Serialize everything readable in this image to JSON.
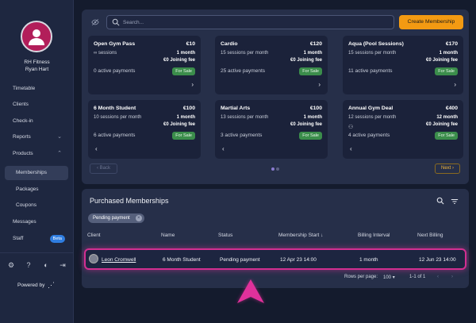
{
  "sidebar": {
    "org_name": "RH Fitness",
    "user_name": "Ryan Hart",
    "items": [
      {
        "label": "Timetable"
      },
      {
        "label": "Clients"
      },
      {
        "label": "Check-in"
      },
      {
        "label": "Reports"
      },
      {
        "label": "Products"
      },
      {
        "label": "Memberships"
      },
      {
        "label": "Packages"
      },
      {
        "label": "Coupons"
      },
      {
        "label": "Messages"
      },
      {
        "label": "Staff"
      }
    ],
    "staff_badge": "Beta",
    "powered_by": "Powered by"
  },
  "toolbar": {
    "search_placeholder": "Search...",
    "create_label": "Create Membership"
  },
  "memberships": [
    {
      "name": "Open Gym Pass",
      "price": "€10",
      "sessions": "∞ sessions",
      "duration": "1 month",
      "fee": "€0 Joining fee",
      "payments": "0 active payments",
      "status": "For Sale"
    },
    {
      "name": "Cardio",
      "price": "€120",
      "sessions": "15 sessions per month",
      "duration": "1 month",
      "fee": "€0 Joining fee",
      "payments": "25 active payments",
      "status": "For Sale"
    },
    {
      "name": "Aqua (Pool Sessions)",
      "price": "€170",
      "sessions": "15 sessions per month",
      "duration": "1 month",
      "fee": "€0 Joining fee",
      "payments": "11 active payments",
      "status": "For Sale"
    },
    {
      "name": "6 Month Student",
      "price": "€100",
      "sessions": "10 sessions per month",
      "duration": "1 month",
      "fee": "€0 Joining fee",
      "payments": "6 active payments",
      "status": "For Sale"
    },
    {
      "name": "Martial Arts",
      "price": "€100",
      "sessions": "13 sessions per month",
      "duration": "1 month",
      "fee": "€0 Joining fee",
      "payments": "3 active payments",
      "status": "For Sale"
    },
    {
      "name": "Annual Gym Deal",
      "price": "€400",
      "sessions": "12 sessions per month",
      "duration": "12 month",
      "fee": "€0 Joining fee",
      "payments": "4 active payments",
      "status": "For Sale"
    }
  ],
  "pager": {
    "back": "Back",
    "next": "Next"
  },
  "purchased": {
    "title": "Purchased Memberships",
    "filter_chip": "Pending payment",
    "columns": [
      "Client",
      "Name",
      "Status",
      "Membership Start ↓",
      "Billing Interval",
      "Next Billing"
    ],
    "row": {
      "client": "Leon Cromwell",
      "name": "6 Month Student",
      "status": "Pending payment",
      "start": "12 Apr 23 14:00",
      "interval": "1 month",
      "next_billing": "12 Jun 23 14:00"
    },
    "rows_per_page_label": "Rows per page:",
    "rows_per_page": "100",
    "range": "1-1 of 1"
  },
  "colors": {
    "accent": "#f39a12",
    "highlight": "#d22f91",
    "for_sale": "#3b8d4b",
    "avatar": "#b21e5a"
  }
}
